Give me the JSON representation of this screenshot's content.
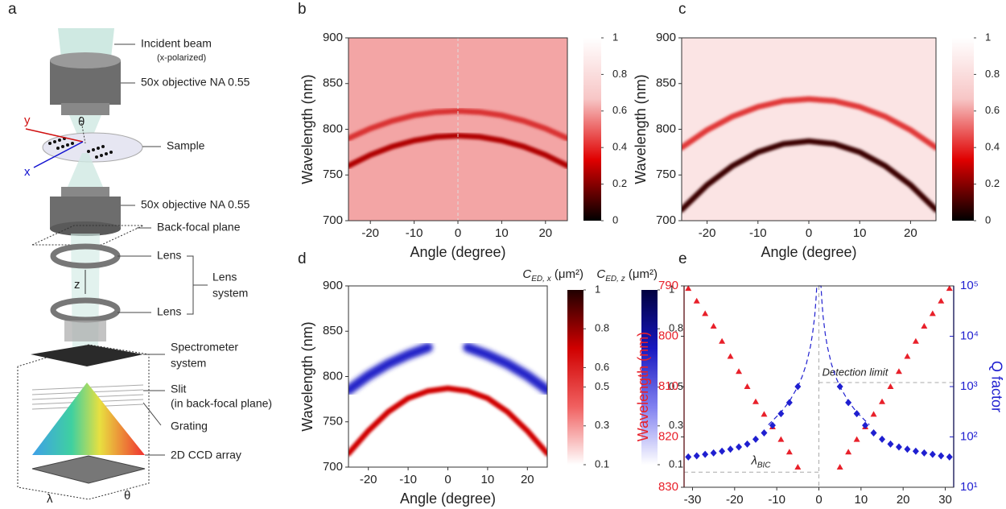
{
  "figure": {
    "panel_labels": [
      "a",
      "b",
      "c",
      "d",
      "e"
    ]
  },
  "diagram": {
    "incident_beam": "Incident beam",
    "polarization": "(x-polarized)",
    "objective_top": "50x objective NA 0.55",
    "sample": "Sample",
    "objective_bottom": "50x objective NA 0.55",
    "back_focal_plane": "Back-focal plane",
    "lens_top": "Lens",
    "lens_system": [
      "Lens",
      "system"
    ],
    "lens_bottom": "Lens",
    "spectrometer": [
      "Spectrometer",
      "system"
    ],
    "slit": "Slit",
    "slit_note": "(in back-focal plane)",
    "grating": "Grating",
    "ccd": "2D CCD array",
    "axes": {
      "x": "x",
      "y": "y",
      "z": "z",
      "theta_sample": "θ",
      "theta_ccd": "θ",
      "lambda_ccd": "λ"
    }
  },
  "chart_data": [
    {
      "type": "heatmap",
      "xlabel": "Angle (degree)",
      "ylabel": "Wavelength (nm)",
      "xlim": [
        -25,
        25
      ],
      "ylim": [
        700,
        900
      ],
      "xticks": [
        -20,
        -10,
        0,
        10,
        20
      ],
      "yticks": [
        700,
        750,
        800,
        850,
        900
      ],
      "background": "#f3a5a5",
      "vline": 0,
      "colorbars": [
        {
          "colors": [
            "#000000",
            "#e00000",
            "#f7c6c6",
            "#ffffff"
          ],
          "clim": [
            0,
            1
          ],
          "ticks": [
            0,
            0.2,
            0.4,
            0.6,
            0.8,
            1
          ]
        }
      ],
      "x": [
        -25,
        -20,
        -15,
        -10,
        -5,
        0,
        5,
        10,
        15,
        20,
        25
      ],
      "series": [
        {
          "color": "#b00000",
          "values": [
            760,
            771.9,
            781.1,
            787.7,
            791.7,
            793,
            791.7,
            787.7,
            781.1,
            771.9,
            760
          ]
        },
        {
          "color": "#d93030",
          "values": [
            790,
            800.8,
            809.2,
            815.2,
            818.8,
            820,
            818.8,
            815.2,
            809.2,
            800.8,
            790
          ]
        }
      ]
    },
    {
      "type": "heatmap",
      "xlabel": "Angle (degree)",
      "ylabel": "Wavelength (nm)",
      "xlim": [
        -25,
        25
      ],
      "ylim": [
        700,
        900
      ],
      "xticks": [
        -20,
        -10,
        0,
        10,
        20
      ],
      "yticks": [
        700,
        750,
        800,
        850,
        900
      ],
      "background": "#fbe4e4",
      "colorbars": [
        {
          "colors": [
            "#000000",
            "#e00000",
            "#f7c6c6",
            "#ffffff"
          ],
          "clim": [
            0,
            1
          ],
          "ticks": [
            0,
            0.2,
            0.4,
            0.6,
            0.8,
            1
          ]
        }
      ],
      "x": [
        -25,
        -20,
        -15,
        -10,
        -5,
        0,
        5,
        10,
        15,
        20,
        25
      ],
      "series": [
        {
          "color": "#3a0000",
          "values": [
            712,
            739,
            760,
            775,
            784,
            787,
            784,
            775,
            760,
            739,
            712
          ]
        },
        {
          "color": "#e03838",
          "values": [
            780,
            799.1,
            813.9,
            824.5,
            830.9,
            833,
            830.9,
            824.5,
            813.9,
            799.1,
            780
          ]
        }
      ]
    },
    {
      "type": "heatmap",
      "xlabel": "Angle (degree)",
      "ylabel": "Wavelength (nm)",
      "xlim": [
        -25,
        25
      ],
      "ylim": [
        700,
        900
      ],
      "xticks": [
        -20,
        -10,
        0,
        10,
        20
      ],
      "yticks": [
        700,
        750,
        800,
        850,
        900
      ],
      "background": "#ffffff",
      "colorbars": [
        {
          "label": {
            "symbol": "C",
            "subscript": "ED, x",
            "unit": " (μm²)"
          },
          "colors": [
            "#ffffff",
            "#f06060",
            "#d00000",
            "#200000"
          ],
          "clim": [
            0.1,
            1
          ],
          "ticks": [
            1,
            0.8,
            0.6,
            0.5,
            0.3,
            0.1
          ]
        },
        {
          "label": {
            "symbol": "C",
            "subscript": "ED, z",
            "unit": " (μm²)"
          },
          "colors": [
            "#ffffff",
            "#8080f0",
            "#1818c0",
            "#000040"
          ],
          "clim": [
            0.1,
            1
          ],
          "ticks": [
            1,
            0.8,
            0.5,
            0.3,
            0.1
          ]
        }
      ],
      "x": [
        -25,
        -20,
        -15,
        -10,
        -5,
        0,
        5,
        10,
        15,
        20,
        25
      ],
      "series": [
        {
          "color": "#d00000",
          "values": [
            715,
            740,
            761,
            776,
            784,
            787,
            784,
            776,
            761,
            740,
            715
          ]
        },
        {
          "color": "#2020c8",
          "values": [
            785,
            801,
            814,
            824,
            832,
            null,
            832,
            824,
            814,
            801,
            785
          ]
        }
      ]
    },
    {
      "type": "scatter",
      "xlabel": "Angle (degree)",
      "ylabel": "Wavelength (nm)",
      "y2label": "Q factor",
      "xlim": [
        -32,
        32
      ],
      "xticks": [
        -30,
        -20,
        -10,
        0,
        10,
        20,
        30
      ],
      "ylim": [
        790,
        830
      ],
      "yticks": [
        790,
        800,
        810,
        820,
        830
      ],
      "y_inverted": true,
      "y2log": true,
      "y2lim": [
        10,
        100000
      ],
      "y2ticks": [
        {
          "value": 10,
          "label": "10¹"
        },
        {
          "value": 100,
          "label": "10²"
        },
        {
          "value": 1000,
          "label": "10³"
        },
        {
          "value": 10000,
          "label": "10⁴"
        },
        {
          "value": 100000,
          "label": "10⁵"
        }
      ],
      "vline": 0,
      "x": [
        -31,
        -29,
        -27,
        -25,
        -23,
        -21,
        -19,
        -17,
        -15,
        -13,
        -11,
        -9,
        -7,
        -5,
        5,
        7,
        9,
        11,
        13,
        15,
        17,
        19,
        21,
        23,
        25,
        27,
        29,
        31
      ],
      "series": [
        {
          "color": "#e8202a",
          "marker": "triangle",
          "values": [
            790.5,
            793,
            795.5,
            798,
            801,
            804,
            807,
            810,
            813,
            815.5,
            818,
            820.5,
            823,
            826,
            826,
            823,
            820.5,
            818,
            815.5,
            813,
            810,
            807,
            804,
            801,
            798,
            795.5,
            793,
            790.5
          ]
        },
        {
          "color": "#1f1fd0",
          "marker": "diamond",
          "axis": "y2",
          "values": [
            40,
            42,
            45,
            48,
            52,
            57,
            63,
            72,
            90,
            120,
            170,
            290,
            480,
            1000,
            1000,
            480,
            290,
            170,
            120,
            90,
            72,
            63,
            57,
            52,
            48,
            45,
            42,
            40
          ]
        },
        {
          "color": "#1f1fd0",
          "style": "dashed",
          "axis": "y2",
          "x": [
            -12,
            -9,
            -7,
            -5,
            -4,
            -3,
            -2,
            -1.5,
            -1,
            -0.7,
            -0.5,
            0.5,
            0.7,
            1,
            1.5,
            2,
            3,
            4,
            5,
            7,
            9,
            12
          ],
          "values": [
            174,
            309,
            510,
            1000,
            1563,
            2778,
            6250,
            11111,
            25000,
            51020,
            100000,
            100000,
            51020,
            25000,
            11111,
            6250,
            2778,
            1563,
            1000,
            510,
            309,
            174
          ]
        }
      ],
      "reference_lines": [
        {
          "axis": "y2",
          "value": 1200,
          "label": "Detection limit"
        },
        {
          "axis": "y",
          "value": 827,
          "label": {
            "symbol": "λ",
            "subscript": "BIC"
          }
        }
      ]
    }
  ]
}
